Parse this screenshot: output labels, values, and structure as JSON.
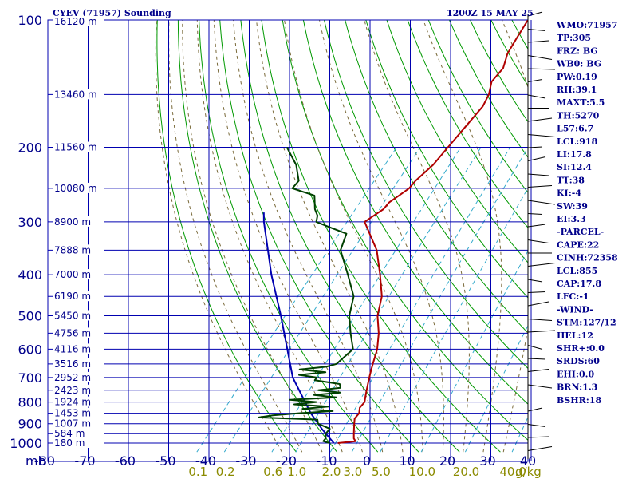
{
  "chart_data": {
    "type": "skew-t sounding",
    "title_left": "CYEV (71957) Sounding",
    "title_right": "1200Z 15 MAY 25",
    "pressure_labels": [
      "100",
      "200",
      "300",
      "400",
      "500",
      "600",
      "700",
      "800",
      "900",
      "1000"
    ],
    "pressure_unit": "mb",
    "temperature_labels": [
      "-80",
      "-70",
      "-60",
      "-50",
      "-40",
      "-30",
      "-20",
      "-10",
      "0",
      "10",
      "20",
      "30",
      "40"
    ],
    "height_labels": [
      {
        "p": 100,
        "text": "16120 m"
      },
      {
        "p": 150,
        "text": "13460 m"
      },
      {
        "p": 200,
        "text": "11560 m"
      },
      {
        "p": 250,
        "text": "10080 m"
      },
      {
        "p": 300,
        "text": "8900 m"
      },
      {
        "p": 350,
        "text": "7888 m"
      },
      {
        "p": 400,
        "text": "7000 m"
      },
      {
        "p": 450,
        "text": "6190 m"
      },
      {
        "p": 500,
        "text": "5450 m"
      },
      {
        "p": 550,
        "text": "4756 m"
      },
      {
        "p": 600,
        "text": "4116 m"
      },
      {
        "p": 650,
        "text": "3516 m"
      },
      {
        "p": 700,
        "text": "2952 m"
      },
      {
        "p": 750,
        "text": "2423 m"
      },
      {
        "p": 800,
        "text": "1924 m"
      },
      {
        "p": 850,
        "text": "1453 m"
      },
      {
        "p": 900,
        "text": "1007 m"
      },
      {
        "p": 950,
        "text": "584 m"
      },
      {
        "p": 1000,
        "text": "180 m"
      }
    ],
    "mixing_ratio_labels": [
      "0.1",
      "0.2",
      "0.6",
      "1.0",
      "2.0",
      "3.0",
      "5.0",
      "10.0",
      "20.0",
      "40.0"
    ],
    "mixing_ratio_unit": "g/kg",
    "temperature_profile": [
      [
        1000,
        -8
      ],
      [
        990,
        -4
      ],
      [
        975,
        -5
      ],
      [
        950,
        -6
      ],
      [
        925,
        -7
      ],
      [
        900,
        -8
      ],
      [
        875,
        -9
      ],
      [
        850,
        -9
      ],
      [
        825,
        -10
      ],
      [
        800,
        -10
      ],
      [
        775,
        -11
      ],
      [
        750,
        -12
      ],
      [
        725,
        -13
      ],
      [
        700,
        -14
      ],
      [
        675,
        -15
      ],
      [
        650,
        -16
      ],
      [
        600,
        -18
      ],
      [
        550,
        -21
      ],
      [
        500,
        -25
      ],
      [
        450,
        -28
      ],
      [
        400,
        -33
      ],
      [
        350,
        -39
      ],
      [
        300,
        -48
      ],
      [
        290,
        -47
      ],
      [
        280,
        -46
      ],
      [
        270,
        -46
      ],
      [
        260,
        -45
      ],
      [
        250,
        -44
      ],
      [
        240,
        -44
      ],
      [
        220,
        -43
      ],
      [
        200,
        -43
      ],
      [
        180,
        -43
      ],
      [
        160,
        -43
      ],
      [
        150,
        -44
      ],
      [
        140,
        -46
      ],
      [
        130,
        -46
      ],
      [
        120,
        -48
      ],
      [
        110,
        -49
      ],
      [
        100,
        -50
      ]
    ],
    "dewpoint_profile": [
      [
        1000,
        -10
      ],
      [
        990,
        -12
      ],
      [
        975,
        -12
      ],
      [
        950,
        -13
      ],
      [
        925,
        -13
      ],
      [
        900,
        -17
      ],
      [
        880,
        -18
      ],
      [
        870,
        -33
      ],
      [
        860,
        -30
      ],
      [
        850,
        -24
      ],
      [
        840,
        -16
      ],
      [
        830,
        -24
      ],
      [
        820,
        -18
      ],
      [
        810,
        -27
      ],
      [
        800,
        -22
      ],
      [
        790,
        -29
      ],
      [
        780,
        -18
      ],
      [
        770,
        -24
      ],
      [
        760,
        -18
      ],
      [
        750,
        -24
      ],
      [
        740,
        -19
      ],
      [
        725,
        -20
      ],
      [
        710,
        -27
      ],
      [
        700,
        -27
      ],
      [
        690,
        -32
      ],
      [
        680,
        -26
      ],
      [
        670,
        -33
      ],
      [
        660,
        -27
      ],
      [
        650,
        -25
      ],
      [
        600,
        -24
      ],
      [
        550,
        -28
      ],
      [
        500,
        -32
      ],
      [
        450,
        -35
      ],
      [
        400,
        -41
      ],
      [
        350,
        -48
      ],
      [
        320,
        -50
      ],
      [
        310,
        -55
      ],
      [
        300,
        -60
      ],
      [
        290,
        -61
      ],
      [
        280,
        -63
      ],
      [
        260,
        -66
      ],
      [
        250,
        -73
      ],
      [
        240,
        -73
      ],
      [
        220,
        -77
      ],
      [
        200,
        -83
      ]
    ],
    "parcel_profile": [
      [
        1000,
        -9
      ],
      [
        925,
        -15
      ],
      [
        850,
        -21
      ],
      [
        700,
        -33
      ],
      [
        500,
        -49
      ],
      [
        400,
        -60
      ],
      [
        300,
        -73
      ],
      [
        285,
        -75
      ]
    ],
    "indices": [
      "WMO:71957",
      "TP:305",
      "FRZ: BG",
      "WB0: BG",
      "PW:0.19",
      "RH:39.1",
      "MAXT:5.5",
      "TH:5270",
      "L57:6.7",
      "LCL:918",
      "LI:17.8",
      "SI:12.4",
      "TT:38",
      "KI:-4",
      "SW:39",
      "EI:3.3",
      "-PARCEL-",
      "CAPE:22",
      "CINH:72358",
      "LCL:855",
      "CAP:17.8",
      "LFC:-1",
      "-WIND-",
      "STM:127/12",
      "HEL:12",
      "SHR+:0.0",
      "SRDS:60",
      "EHI:0.0",
      "BRN:1.3",
      "BSHR:18"
    ],
    "colors": {
      "isobars": "#0000b0",
      "isotherms": "#0000b0",
      "dry_adiabats": "#009900",
      "moist_adiabats": "#7a6a3a",
      "mixing_ratio": "#33aacc",
      "temperature": "#b00000",
      "dewpoint": "#004000",
      "parcel": "#0000b0",
      "text": "#00008b"
    }
  }
}
